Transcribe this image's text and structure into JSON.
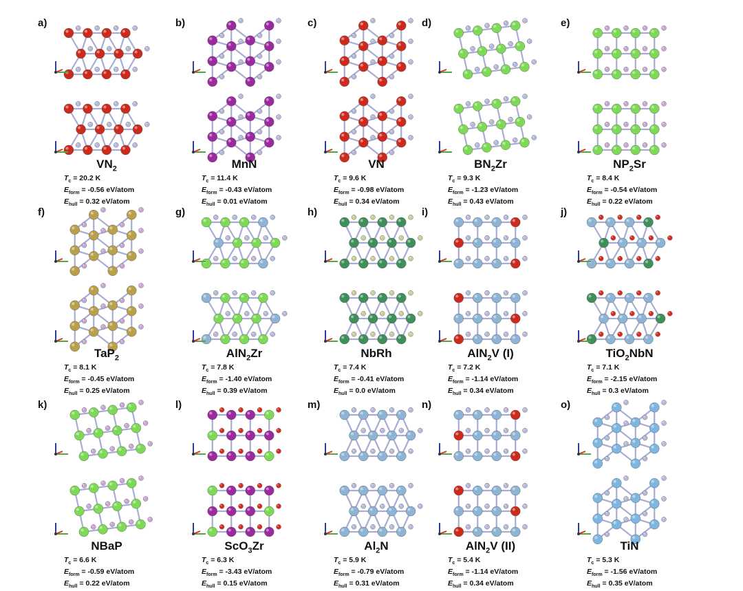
{
  "panels": [
    {
      "label": "a)",
      "formula": "VN",
      "sub": "2",
      "tail": "",
      "tc": "20.2 K",
      "eform": "-0.56 eV/atom",
      "ehull": "0.32 eV/atom",
      "col": 0,
      "row": 0,
      "metal": "#cc2a1d",
      "nonmetal": "#b7b9dd",
      "metal2": "",
      "style": "hex"
    },
    {
      "label": "b)",
      "formula": "MnN",
      "sub": "",
      "tail": "",
      "tc": "11.4 K",
      "eform": "-0.43 eV/atom",
      "ehull": "0.01 eV/atom",
      "col": 1,
      "row": 0,
      "metal": "#9a2a9e",
      "nonmetal": "#b7b9dd",
      "metal2": "",
      "style": "zig"
    },
    {
      "label": "c)",
      "formula": "VN",
      "sub": "",
      "tail": "",
      "tc": "9.6 K",
      "eform": "-0.98 eV/atom",
      "ehull": "0.34 eV/atom",
      "col": 2,
      "row": 0,
      "metal": "#cc2a1d",
      "nonmetal": "#b7b9dd",
      "metal2": "",
      "style": "zig"
    },
    {
      "label": "d)",
      "formula": "BN",
      "sub": "2",
      "tail": "Zr",
      "tc": "9.3 K",
      "eform": "-1.23 eV/atom",
      "ehull": "0.43 eV/atom",
      "col": 3,
      "row": 0,
      "metal": "#7ed957",
      "nonmetal": "#b7b9dd",
      "metal2": "",
      "style": "diag"
    },
    {
      "label": "e)",
      "formula": "NP",
      "sub": "2",
      "tail": "Sr",
      "tc": "8.4 K",
      "eform": "-0.54 eV/atom",
      "ehull": "0.22 eV/atom",
      "col": 4,
      "row": 0,
      "metal": "#7ed957",
      "nonmetal": "#c9a8d6",
      "metal2": "",
      "style": "grid"
    },
    {
      "label": "f)",
      "formula": "TaP",
      "sub": "2",
      "tail": "",
      "tc": "8.1 K",
      "eform": "-0.45 eV/atom",
      "ehull": "0.25 eV/atom",
      "col": 0,
      "row": 1,
      "metal": "#b9a04a",
      "nonmetal": "#c9a8d6",
      "metal2": "",
      "style": "zig"
    },
    {
      "label": "g)",
      "formula": "AlN",
      "sub": "2",
      "tail": "Zr",
      "tc": "7.8 K",
      "eform": "-1.40 eV/atom",
      "ehull": "0.39 eV/atom",
      "col": 1,
      "row": 1,
      "metal": "#7ed957",
      "nonmetal": "#b7b9dd",
      "metal2": "#8db4d4",
      "style": "hex"
    },
    {
      "label": "h)",
      "formula": "NbRh",
      "sub": "",
      "tail": "",
      "tc": "7.4 K",
      "eform": "-0.41 eV/atom",
      "ehull": "0.0 eV/atom",
      "col": 2,
      "row": 1,
      "metal": "#3f8f5a",
      "nonmetal": "#c9cf9a",
      "metal2": "",
      "style": "diamond"
    },
    {
      "label": "i)",
      "formula": "AlN",
      "sub": "2",
      "tail": "V (I)",
      "tc": "7.2 K",
      "eform": "-1.14 eV/atom",
      "ehull": "0.34 eV/atom",
      "col": 3,
      "row": 1,
      "metal": "#8db4d4",
      "nonmetal": "#b7b9dd",
      "metal2": "#cc2a1d",
      "style": "grid"
    },
    {
      "label": "j)",
      "formula": "TiO",
      "sub": "2",
      "tail": "NbN",
      "tc": "7.1 K",
      "eform": "-2.15 eV/atom",
      "ehull": "0.3 eV/atom",
      "col": 4,
      "row": 1,
      "metal": "#8db4d4",
      "nonmetal": "#d92a20",
      "metal2": "#3f8f5a",
      "style": "hex"
    },
    {
      "label": "k)",
      "formula": "NBaP",
      "sub": "",
      "tail": "",
      "tc": "6.6 K",
      "eform": "-0.59 eV/atom",
      "ehull": "0.22 eV/atom",
      "col": 0,
      "row": 2,
      "metal": "#7ed957",
      "nonmetal": "#c9a8d6",
      "metal2": "",
      "style": "diag"
    },
    {
      "label": "l)",
      "formula": "ScO",
      "sub": "3",
      "tail": "Zr",
      "tc": "6.3 K",
      "eform": "-3.43 eV/atom",
      "ehull": "0.15 eV/atom",
      "col": 1,
      "row": 2,
      "metal": "#9a2a9e",
      "nonmetal": "#d92a20",
      "metal2": "#7ed957",
      "style": "grid"
    },
    {
      "label": "m)",
      "formula": "Al",
      "sub": "2",
      "tail": "N",
      "tc": "5.9 K",
      "eform": "-0.79 eV/atom",
      "ehull": "0.31 eV/atom",
      "col": 2,
      "row": 2,
      "metal": "#8db4d4",
      "nonmetal": "#b7b9dd",
      "metal2": "",
      "style": "diamond"
    },
    {
      "label": "n)",
      "formula": "AlN",
      "sub": "2",
      "tail": "V (II)",
      "tc": "5.4 K",
      "eform": "-1.14 eV/atom",
      "ehull": "0.34 eV/atom",
      "col": 3,
      "row": 2,
      "metal": "#8db4d4",
      "nonmetal": "#b7b9dd",
      "metal2": "#cc2a1d",
      "style": "grid"
    },
    {
      "label": "o)",
      "formula": "TiN",
      "sub": "",
      "tail": "",
      "tc": "5.3 K",
      "eform": "-1.56 eV/atom",
      "ehull": "0.35 eV/atom",
      "col": 4,
      "row": 2,
      "metal": "#7fb6e0",
      "nonmetal": "#b7b9dd",
      "metal2": "",
      "style": "zig"
    }
  ],
  "labels": {
    "tc_sym": "T",
    "tc_sub": "c",
    "ef_sym": "E",
    "ef_sub": "form",
    "eh_sym": "E",
    "eh_sub": "hull"
  },
  "axis_colors": {
    "a": "#d6322a",
    "b": "#4fa83a",
    "c": "#2c3f9e"
  }
}
